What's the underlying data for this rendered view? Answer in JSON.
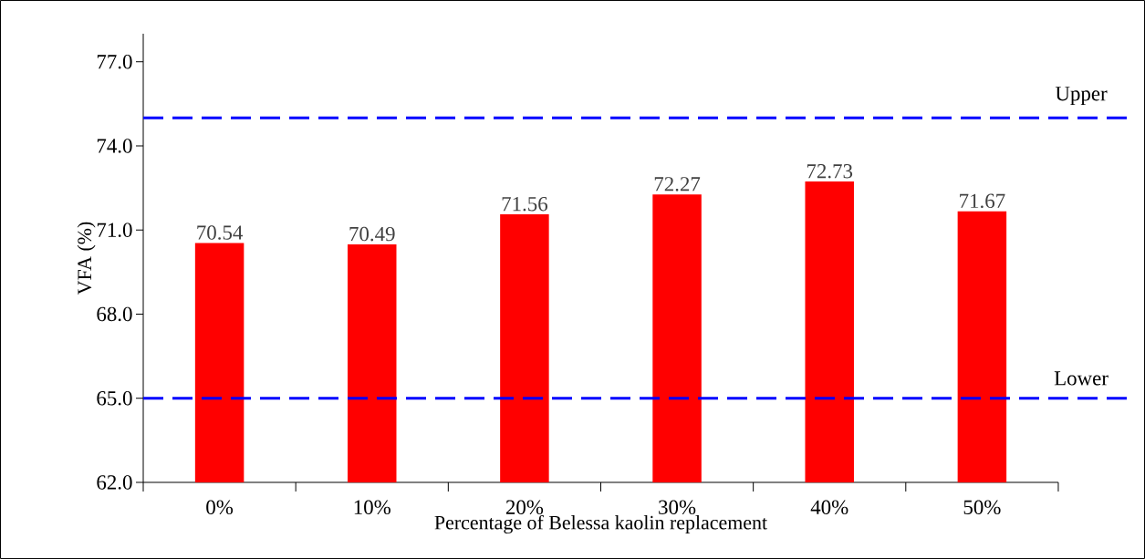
{
  "chart_data": {
    "type": "bar",
    "xlabel": "Percentage of Belessa kaolin replacement",
    "ylabel": "VFA (%)",
    "categories": [
      "0%",
      "10%",
      "20%",
      "30%",
      "40%",
      "50%"
    ],
    "values": [
      70.54,
      70.49,
      71.56,
      72.27,
      72.73,
      71.67
    ],
    "color": "#ff0000",
    "data_labels": true,
    "grid": false,
    "ylim": [
      62,
      78
    ],
    "yticks": [
      {
        "value": 62,
        "label": "62.0"
      },
      {
        "value": 65,
        "label": "65.0"
      },
      {
        "value": 68,
        "label": "68.0"
      },
      {
        "value": 71,
        "label": "71.0"
      },
      {
        "value": 74,
        "label": "74.0"
      },
      {
        "value": 77,
        "label": "77.0"
      }
    ],
    "ref_lines": [
      {
        "axis": "y",
        "value": 75,
        "label": "Upper",
        "color": "#0000ff",
        "line_style": "dashed"
      },
      {
        "axis": "y",
        "value": 65,
        "label": "Lower",
        "color": "#0000ff",
        "line_style": "dashed"
      }
    ]
  }
}
